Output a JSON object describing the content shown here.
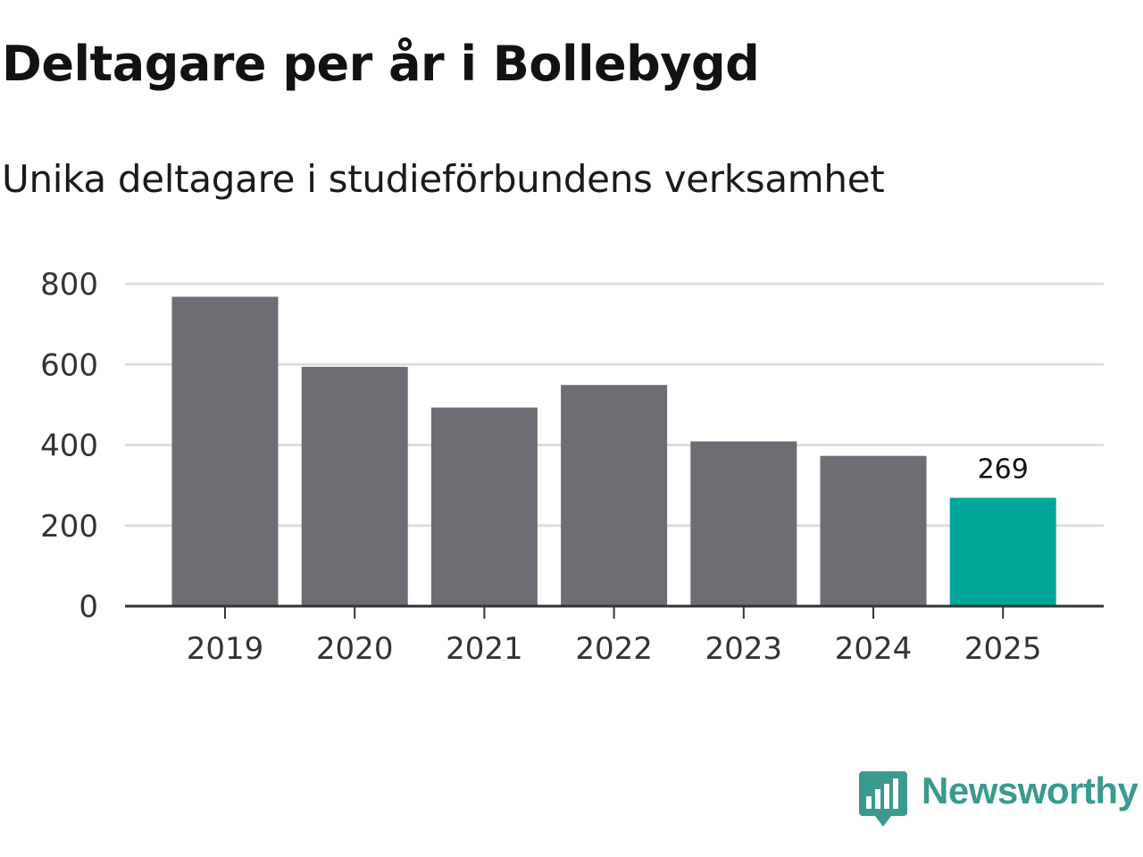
{
  "title": "Deltagare per år i Bollebygd",
  "subtitle": "Unika deltagare i studieförbundens verksamhet",
  "brand": {
    "name": "Newsworthy",
    "color": "#3a9a8f",
    "icon": "newsworthy-chart-bubble-icon"
  },
  "colors": {
    "bar": "#6e6d73",
    "highlight": "#00a59a",
    "grid": "#dddddd",
    "axis": "#333333"
  },
  "chart_data": {
    "type": "bar",
    "title": "Deltagare per år i Bollebygd",
    "subtitle": "Unika deltagare i studieförbundens verksamhet",
    "categories": [
      "2019",
      "2020",
      "2021",
      "2022",
      "2023",
      "2024",
      "2025"
    ],
    "values": [
      768,
      594,
      493,
      549,
      409,
      373,
      269
    ],
    "highlight_index": 6,
    "data_labels": [
      {
        "index": 6,
        "text": "269"
      }
    ],
    "yticks": [
      0,
      200,
      400,
      600,
      800
    ],
    "ylim": [
      0,
      800
    ],
    "xlabel": "",
    "ylabel": "",
    "grid": true,
    "legend": "none"
  }
}
